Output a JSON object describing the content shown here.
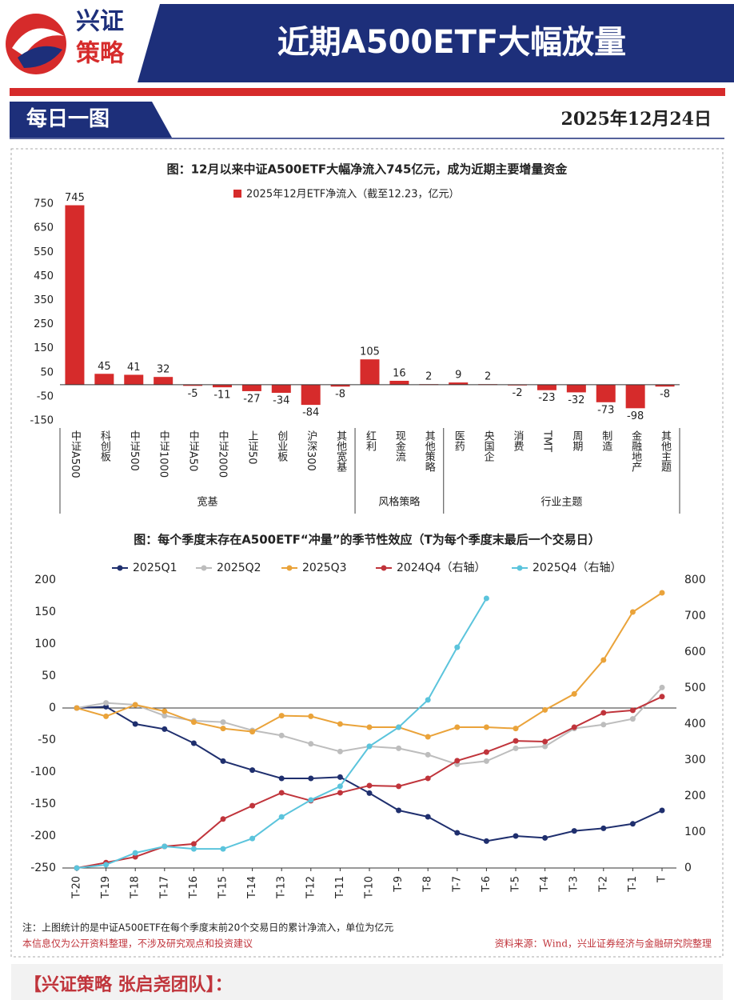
{
  "header": {
    "logo_top": "兴证",
    "logo_bottom": "策略",
    "title": "近期A500ETF大幅放量"
  },
  "subheader": {
    "label": "每日一图",
    "date": "2025年12月24日"
  },
  "chart_data": [
    {
      "type": "bar",
      "title": "图：12月以来中证A500ETF大幅净流入745亿元，成为近期主要增量资金",
      "series_name": "2025年12月ETF净流入（截至12.23，亿元）",
      "color": "#d62b2b",
      "ylim": [
        -180,
        800
      ],
      "yticks": [
        -150,
        -50,
        50,
        150,
        250,
        350,
        450,
        550,
        650,
        750
      ],
      "groups": [
        {
          "name": "宽基",
          "categories": [
            "中证A500",
            "科创板",
            "中证500",
            "中证1000",
            "中证A50",
            "中证2000",
            "上证50",
            "创业板",
            "沪深300",
            "其他宽基"
          ],
          "values": [
            745,
            45,
            41,
            32,
            -5,
            -11,
            -27,
            -34,
            -84,
            -8
          ]
        },
        {
          "name": "风格策略",
          "categories": [
            "红利",
            "现金流",
            "其他策略"
          ],
          "values": [
            105,
            16,
            2
          ]
        },
        {
          "name": "行业主题",
          "categories": [
            "医药",
            "央国企",
            "消费",
            "TMT",
            "周期",
            "制造",
            "金融地产",
            "其他主题"
          ],
          "values": [
            9,
            2,
            -2,
            -23,
            -32,
            -73,
            -98,
            -8
          ]
        }
      ]
    },
    {
      "type": "line",
      "title": "图：每个季度末存在A500ETF“冲量”的季节性效应（T为每个季度末最后一个交易日）",
      "categories": [
        "T-20",
        "T-19",
        "T-18",
        "T-17",
        "T-16",
        "T-15",
        "T-14",
        "T-13",
        "T-12",
        "T-11",
        "T-10",
        "T-9",
        "T-8",
        "T-7",
        "T-6",
        "T-5",
        "T-4",
        "T-3",
        "T-2",
        "T-1",
        "T"
      ],
      "ylim": [
        -250,
        200
      ],
      "yticks": [
        -250,
        -200,
        -150,
        -100,
        -50,
        0,
        50,
        100,
        150,
        200
      ],
      "y2lim": [
        0,
        800
      ],
      "y2ticks": [
        0,
        100,
        200,
        300,
        400,
        500,
        600,
        700,
        800
      ],
      "series": [
        {
          "name": "2025Q1",
          "color": "#1f2f6e",
          "values": [
            0,
            2,
            -25,
            -33,
            -55,
            -83,
            -97,
            -110,
            -110,
            -108,
            -133,
            -160,
            -170,
            -195,
            -208,
            -200,
            -203,
            -192,
            -188,
            -181,
            -160
          ]
        },
        {
          "name": "2025Q2",
          "color": "#bdbdbd",
          "values": [
            0,
            8,
            5,
            -12,
            -20,
            -22,
            -35,
            -43,
            -56,
            -68,
            -60,
            -63,
            -73,
            -88,
            -83,
            -63,
            -60,
            -32,
            -26,
            -17,
            32
          ]
        },
        {
          "name": "2025Q3",
          "color": "#eaa33a",
          "values": [
            0,
            -13,
            5,
            -5,
            -22,
            -32,
            -37,
            -12,
            -13,
            -25,
            -30,
            -30,
            -45,
            -30,
            -30,
            -32,
            -3,
            22,
            75,
            150,
            180
          ]
        },
        {
          "name": "2024Q4（右轴）",
          "color": "#c0343b",
          "axis": "y2",
          "values": [
            0,
            15,
            31,
            60,
            67,
            136,
            173,
            209,
            187,
            209,
            229,
            227,
            249,
            298,
            322,
            353,
            351,
            391,
            431,
            438,
            476
          ]
        },
        {
          "name": "2025Q4（右轴）",
          "color": "#5bc4dc",
          "axis": "y2",
          "values": [
            0,
            9,
            42,
            60,
            53,
            53,
            82,
            142,
            189,
            227,
            338,
            391,
            467,
            613,
            749,
            null,
            null,
            null,
            null,
            null,
            null
          ]
        }
      ]
    }
  ],
  "notes": {
    "note": "注：上图统计的是中证A500ETF在每个季度末前20个交易日的累计净流入，单位为亿元",
    "disclaimer": "本信息仅为公开资料整理，不涉及研究观点和投资建议",
    "source": "资料来源：Wind，兴业证券经济与金融研究院整理"
  },
  "footer": "【兴证策略 张启尧团队】："
}
